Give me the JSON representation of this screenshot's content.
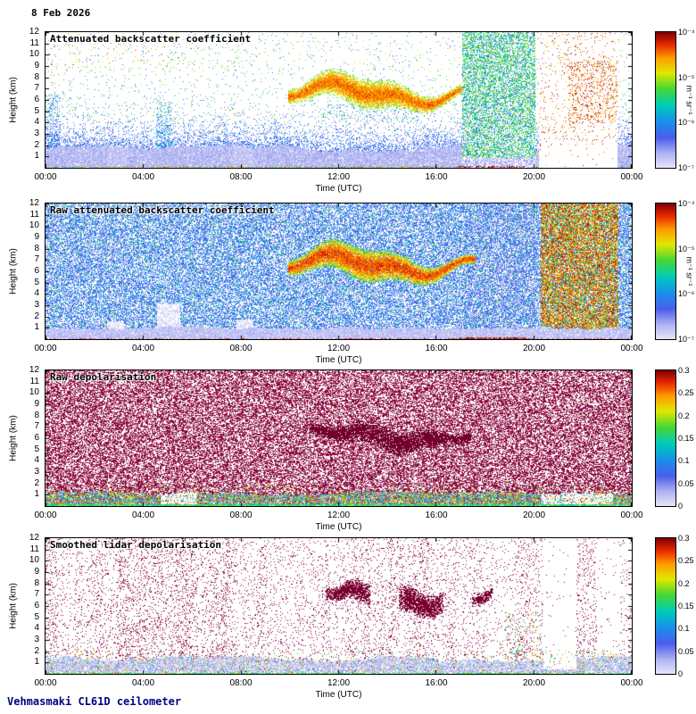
{
  "date_label": "8 Feb 2026",
  "footer_label": "Vehmasmaki CL61D ceilometer",
  "axes": {
    "xlabel": "Time (UTC)",
    "ylabel": "Height (km)",
    "x_ticks": [
      "00:00",
      "04:00",
      "08:00",
      "12:00",
      "16:00",
      "20:00",
      "00:00"
    ],
    "y_ticks": [
      "12",
      "11",
      "10",
      "9",
      "8",
      "7",
      "6",
      "5",
      "4",
      "3",
      "2",
      "1"
    ]
  },
  "panels": [
    {
      "title": "Attenuated backscatter coefficient",
      "colorbar": {
        "scale": "log",
        "tick_labels": [
          "10⁻⁴",
          "10⁻⁵",
          "10⁻⁶",
          "10⁻⁷"
        ],
        "unit": "m⁻¹ sr⁻¹"
      }
    },
    {
      "title": "Raw attenuated backscatter coefficient",
      "colorbar": {
        "scale": "log",
        "tick_labels": [
          "10⁻⁴",
          "10⁻⁵",
          "10⁻⁶",
          "10⁻⁷"
        ],
        "unit": "m⁻¹ sr⁻¹"
      }
    },
    {
      "title": "Raw depolarisation",
      "colorbar": {
        "scale": "linear",
        "tick_labels": [
          "0.3",
          "0.25",
          "0.2",
          "0.15",
          "0.1",
          "0.05",
          "0"
        ],
        "unit": ""
      }
    },
    {
      "title": "Smoothed lidar depolarisation",
      "colorbar": {
        "scale": "linear",
        "tick_labels": [
          "0.3",
          "0.25",
          "0.2",
          "0.15",
          "0.1",
          "0.05",
          "0"
        ],
        "unit": ""
      }
    }
  ],
  "chart_data": [
    {
      "type": "heatmap",
      "title": "Attenuated backscatter coefficient",
      "xlabel": "Time (UTC)",
      "ylabel": "Height (km)",
      "x_ticks": [
        "00:00",
        "04:00",
        "08:00",
        "12:00",
        "16:00",
        "20:00",
        "00:00"
      ],
      "ylim": [
        0,
        12
      ],
      "colorbar": {
        "scale": "log",
        "min": 1e-07,
        "max": 0.0001,
        "unit": "m⁻¹ sr⁻¹"
      },
      "features": [
        {
          "name": "boundary-layer aerosol band",
          "time": [
            "00:00",
            "24:00"
          ],
          "height_km": [
            0,
            2
          ],
          "approx_value": "1e-6 to 1e-5"
        },
        {
          "name": "elevated cloud layer",
          "time": [
            "10:00",
            "17:30"
          ],
          "height_km": [
            5,
            8.5
          ],
          "approx_value": "1e-5 to 1e-4"
        },
        {
          "name": "dense scattered column",
          "time": [
            "17:00",
            "20:00"
          ],
          "height_km": [
            0,
            12
          ],
          "approx_value": "1e-6"
        },
        {
          "name": "high-backscatter noise block",
          "time": [
            "20:15",
            "23:20"
          ],
          "height_km": [
            2,
            12
          ],
          "approx_value": "1e-4"
        }
      ]
    },
    {
      "type": "heatmap",
      "title": "Raw attenuated backscatter coefficient",
      "xlabel": "Time (UTC)",
      "ylabel": "Height (km)",
      "x_ticks": [
        "00:00",
        "04:00",
        "08:00",
        "12:00",
        "16:00",
        "20:00",
        "00:00"
      ],
      "ylim": [
        0,
        12
      ],
      "colorbar": {
        "scale": "log",
        "min": 1e-07,
        "max": 0.0001,
        "unit": "m⁻¹ sr⁻¹"
      },
      "features": [
        {
          "name": "dense background noise",
          "time": [
            "00:00",
            "20:15"
          ],
          "height_km": [
            0,
            12
          ],
          "approx_value": "1e-6"
        },
        {
          "name": "boundary-layer band",
          "time": [
            "00:00",
            "24:00"
          ],
          "height_km": [
            0,
            1
          ],
          "approx_value": "1e-7"
        },
        {
          "name": "elevated cloud layer",
          "time": [
            "10:00",
            "17:30"
          ],
          "height_km": [
            5,
            8.5
          ],
          "approx_value": "1e-5 to 1e-4"
        },
        {
          "name": "strong noise block",
          "time": [
            "20:15",
            "23:30"
          ],
          "height_km": [
            1,
            12
          ],
          "approx_value": "1e-5 to 1e-4"
        }
      ]
    },
    {
      "type": "heatmap",
      "title": "Raw depolarisation",
      "xlabel": "Time (UTC)",
      "ylabel": "Height (km)",
      "x_ticks": [
        "00:00",
        "04:00",
        "08:00",
        "12:00",
        "16:00",
        "20:00",
        "00:00"
      ],
      "ylim": [
        0,
        12
      ],
      "colorbar": {
        "scale": "linear",
        "min": 0,
        "max": 0.3
      },
      "features": [
        {
          "name": "saturated depolarisation noise",
          "time": [
            "00:00",
            "24:00"
          ],
          "height_km": [
            1,
            12
          ],
          "approx_value": ">=0.3"
        },
        {
          "name": "low-depolarisation surface band",
          "time": [
            "00:00",
            "24:00"
          ],
          "height_km": [
            0,
            1
          ],
          "approx_value": "0 to 0.2"
        },
        {
          "name": "enhanced cloud depolarisation",
          "time": [
            "11:00",
            "17:20"
          ],
          "height_km": [
            5,
            7.5
          ],
          "approx_value": "0.3"
        }
      ]
    },
    {
      "type": "heatmap",
      "title": "Smoothed lidar depolarisation",
      "xlabel": "Time (UTC)",
      "ylabel": "Height (km)",
      "x_ticks": [
        "00:00",
        "04:00",
        "08:00",
        "12:00",
        "16:00",
        "20:00",
        "00:00"
      ],
      "ylim": [
        0,
        12
      ],
      "colorbar": {
        "scale": "linear",
        "min": 0,
        "max": 0.3
      },
      "features": [
        {
          "name": "sparse residual noise",
          "time": [
            "00:00",
            "20:15"
          ],
          "height_km": [
            1,
            12
          ],
          "approx_value": "0.3"
        },
        {
          "name": "low-depolarisation surface band",
          "time": [
            "00:00",
            "24:00"
          ],
          "height_km": [
            0,
            1.5
          ],
          "approx_value": "0 to 0.1"
        },
        {
          "name": "ice cloud depolarisation layer",
          "time": [
            "11:00",
            "18:15"
          ],
          "height_km": [
            5.5,
            8
          ],
          "approx_value": "0.3"
        },
        {
          "name": "screened white gaps",
          "time": [
            "20:20",
            "23:30"
          ],
          "height_km": [
            0.5,
            12
          ]
        }
      ]
    }
  ]
}
